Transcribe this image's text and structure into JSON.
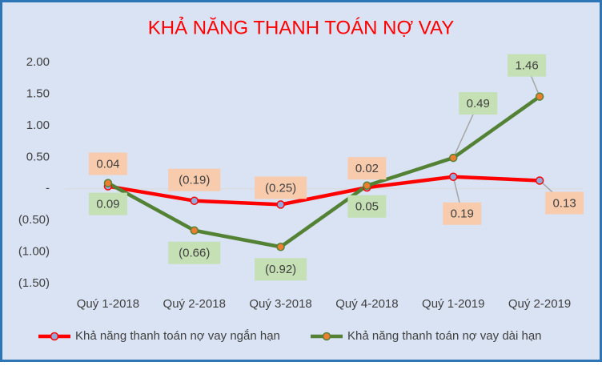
{
  "chart_data": {
    "type": "line",
    "title": "KHẢ NĂNG THANH TOÁN NỢ VAY",
    "categories": [
      "Quý 1-2018",
      "Quý 2-2018",
      "Quý 3-2018",
      "Quý 4-2018",
      "Quý 1-2019",
      "Quý 2-2019"
    ],
    "series": [
      {
        "name": "Khả năng thanh toán nợ vay ngắn hạn",
        "color": "#ff0000",
        "marker_color": "#8faadc",
        "label_color": "#f8cbad",
        "values": [
          0.04,
          -0.19,
          -0.25,
          0.02,
          0.19,
          0.13
        ],
        "value_labels": [
          "0.04",
          "(0.19)",
          "(0.25)",
          "0.02",
          "0.19",
          "0.13"
        ]
      },
      {
        "name": "Khả năng thanh toán nợ vay dài hạn",
        "color": "#548235",
        "marker_color": "#ed7d31",
        "label_color": "#c5e0b4",
        "values": [
          0.09,
          -0.66,
          -0.92,
          0.05,
          0.49,
          1.46
        ],
        "value_labels": [
          "0.09",
          "(0.66)",
          "(0.92)",
          "0.05",
          "0.49",
          "1.46"
        ]
      }
    ],
    "ylim": [
      -1.5,
      2.0
    ],
    "yticks": [
      {
        "value": 2.0,
        "label": "2.00"
      },
      {
        "value": 1.5,
        "label": "1.50"
      },
      {
        "value": 1.0,
        "label": "1.00"
      },
      {
        "value": 0.5,
        "label": "0.50"
      },
      {
        "value": 0,
        "label": "-"
      },
      {
        "value": -0.5,
        "label": "(0.50)"
      },
      {
        "value": -1.0,
        "label": "(1.00)"
      },
      {
        "value": -1.5,
        "label": "(1.50)"
      }
    ],
    "legend": "bottom"
  }
}
